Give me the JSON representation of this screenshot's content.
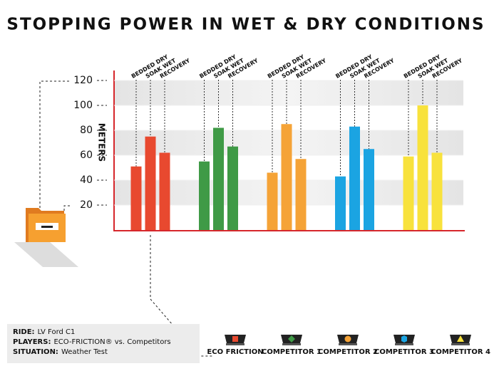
{
  "chart_data": {
    "type": "bar",
    "title": "STOPPING POWER IN WET & DRY CONDITIONS",
    "y_label": "METERS",
    "categories": [
      "ECO FRICTION",
      "COMPETITOR 1",
      "COMPETITOR 2",
      "COMPETITOR 3",
      "COMPETITOR 4"
    ],
    "colors": [
      "#e8492f",
      "#3f9a46",
      "#f5a337",
      "#1ba4e2",
      "#f8e23c"
    ],
    "series": [
      {
        "name": "BEDDED DRY",
        "values": [
          51,
          55,
          46,
          43,
          59
        ]
      },
      {
        "name": "SOAK WET",
        "values": [
          75,
          82,
          85,
          83,
          100
        ]
      },
      {
        "name": "RECOVERY",
        "values": [
          62,
          67,
          57,
          65,
          62
        ]
      }
    ],
    "ylim": [
      0,
      128
    ],
    "yticks": [
      20,
      40,
      60,
      80,
      100,
      120
    ]
  },
  "info": [
    {
      "label": "RIDE:",
      "value": "LV Ford C1"
    },
    {
      "label": "PLAYERS:",
      "value": "ECO-FRICTION® vs. Competitors"
    },
    {
      "label": "SITUATION:",
      "value": "Weather Test"
    }
  ]
}
